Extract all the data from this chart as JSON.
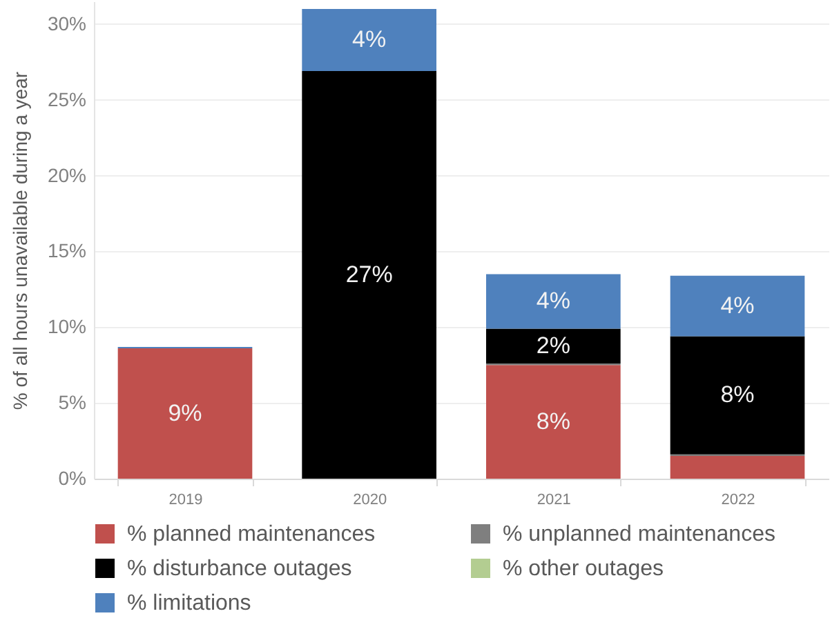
{
  "chart_data": {
    "type": "bar",
    "stacked": true,
    "ylabel": "% of all hours unavailable during a year",
    "categories": [
      "2019",
      "2020",
      "2021",
      "2022"
    ],
    "series": [
      {
        "name": "% planned maintenances",
        "color": "#c0504d",
        "values": [
          8.6,
          null,
          7.5,
          1.5
        ],
        "value_labels": [
          "9%",
          null,
          "8%",
          null
        ]
      },
      {
        "name": "% unplanned maintenances",
        "color": "#7f7f7f",
        "values": [
          null,
          null,
          0.1,
          0.1
        ]
      },
      {
        "name": "% disturbance outages",
        "color": "#000000",
        "values": [
          null,
          26.9,
          2.3,
          7.8
        ],
        "value_labels": [
          null,
          "27%",
          "2%",
          "8%"
        ]
      },
      {
        "name": "% other outages",
        "color": "#b3cd91",
        "values": [
          null,
          null,
          null,
          null
        ]
      },
      {
        "name": "% limitations",
        "color": "#4f81bd",
        "values": [
          0.1,
          4.1,
          3.6,
          4.0
        ],
        "value_labels": [
          null,
          "4%",
          "4%",
          "4%"
        ]
      }
    ],
    "ylim": [
      0,
      31.5
    ],
    "yticks": [
      {
        "value": 0,
        "label": "0%"
      },
      {
        "value": 5,
        "label": "5%"
      },
      {
        "value": 10,
        "label": "10%"
      },
      {
        "value": 15,
        "label": "15%"
      },
      {
        "value": 20,
        "label": "20%"
      },
      {
        "value": 25,
        "label": "25%"
      },
      {
        "value": 30,
        "label": "30%"
      }
    ],
    "grid": "y",
    "legend": "bottom"
  }
}
